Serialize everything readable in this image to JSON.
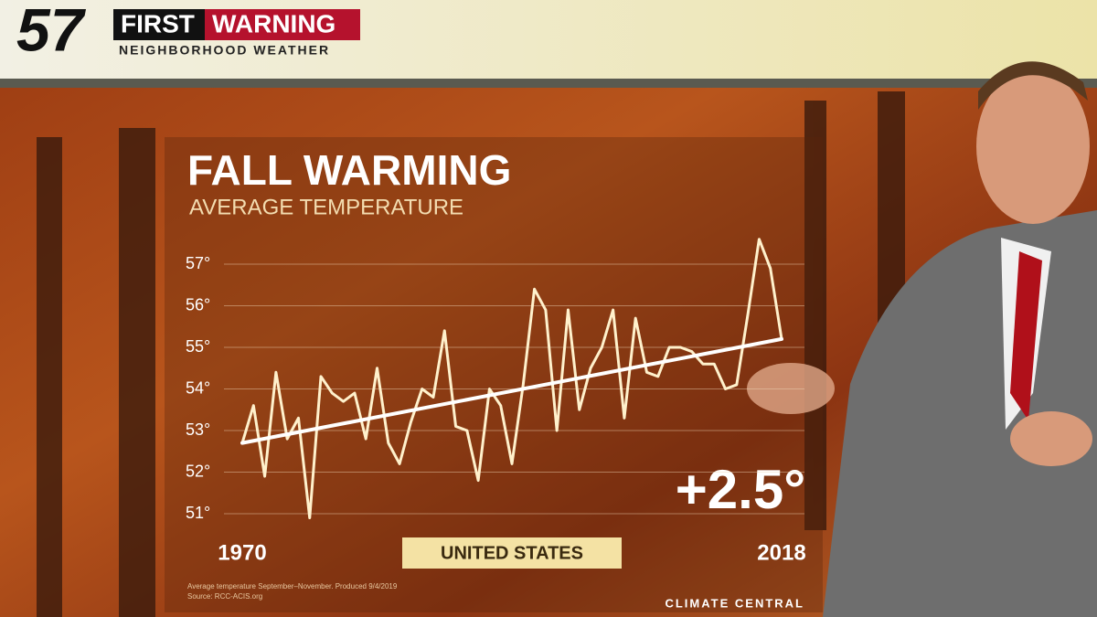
{
  "header": {
    "logo": "57",
    "first": "FIRST",
    "warning": "WARNING",
    "subtitle": "NEIGHBORHOOD WEATHER"
  },
  "chart_data": {
    "type": "line",
    "title": "FALL WARMING",
    "subtitle": "AVERAGE TEMPERATURE",
    "label": "UNITED STATES",
    "annotation": "+2.5°",
    "x": [
      1970,
      1971,
      1972,
      1973,
      1974,
      1975,
      1976,
      1977,
      1978,
      1979,
      1980,
      1981,
      1982,
      1983,
      1984,
      1985,
      1986,
      1987,
      1988,
      1989,
      1990,
      1991,
      1992,
      1993,
      1994,
      1995,
      1996,
      1997,
      1998,
      1999,
      2000,
      2001,
      2002,
      2003,
      2004,
      2005,
      2006,
      2007,
      2008,
      2009,
      2010,
      2011,
      2012,
      2013,
      2014,
      2015,
      2016,
      2017,
      2018
    ],
    "series": [
      {
        "color": "#fff1cc",
        "values": [
          52.7,
          53.6,
          51.9,
          54.4,
          52.8,
          53.3,
          50.9,
          54.3,
          53.9,
          53.7,
          53.9,
          52.8,
          54.5,
          52.7,
          52.2,
          53.2,
          54.0,
          53.8,
          55.4,
          53.1,
          53.0,
          51.8,
          54.0,
          53.6,
          52.2,
          54.1,
          56.4,
          55.9,
          53.0,
          55.9,
          53.5,
          54.5,
          55.0,
          55.9,
          53.3,
          55.7,
          54.4,
          54.3,
          55.0,
          55.0,
          54.9,
          54.6,
          54.6,
          54.0,
          54.1,
          55.8,
          57.6,
          56.9,
          55.2
        ]
      }
    ],
    "trend": {
      "color": "#ffffff",
      "x": [
        1970,
        2018
      ],
      "values": [
        52.7,
        55.2
      ]
    },
    "xlim": [
      1970,
      2018
    ],
    "xticks": [
      1970,
      2018
    ],
    "ylim": [
      51,
      57
    ],
    "yticks": [
      {
        "value": 51,
        "label": "51°"
      },
      {
        "value": 52,
        "label": "52°"
      },
      {
        "value": 53,
        "label": "53°"
      },
      {
        "value": 54,
        "label": "54°"
      },
      {
        "value": 55,
        "label": "55°"
      },
      {
        "value": 56,
        "label": "56°"
      },
      {
        "value": 57,
        "label": "57°"
      }
    ],
    "grid": true,
    "source": [
      "Average temperature September–November. Produced 9/4/2019",
      "Source: RCC-ACIS.org"
    ],
    "credit": "CLIMATE CENTRAL"
  }
}
